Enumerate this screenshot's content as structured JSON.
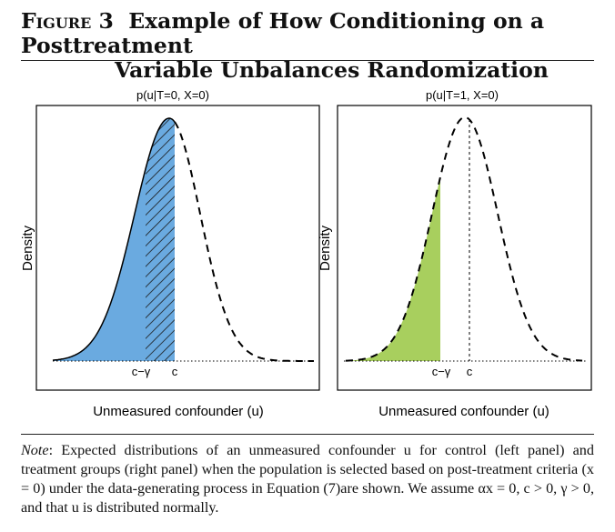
{
  "figure": {
    "label": "Figure 3",
    "title_line1": "Example of How Conditioning on a Posttreatment",
    "title_line2": "Variable Unbalances Randomization"
  },
  "note": {
    "label": "Note",
    "text": ": Expected distributions of an unmeasured confounder u for control (left panel) and treatment groups (right panel) when the population is selected based on post-treatment criteria (x = 0) under the data-generating process in Equation (7)are shown. We assume αx = 0, c > 0, γ > 0, and that u is distributed normally."
  },
  "colors": {
    "left_fill": "#6aaae0",
    "right_fill": "#a8cf5e",
    "curve": "#000000"
  },
  "chart_data": [
    {
      "type": "area",
      "title": "p(u|T=0, X=0)",
      "xlabel": "Unmeasured confounder (u)",
      "ylabel": "Density",
      "tick_labels": [
        "c−γ",
        "c"
      ],
      "curve": "skewed-normal density, dashed beyond c",
      "shaded_solid": "below c−γ",
      "shaded_hatched": "between c−γ and c",
      "fill": "#6aaae0"
    },
    {
      "type": "area",
      "title": "p(u|T=1, X=0)",
      "xlabel": "Unmeasured confounder (u)",
      "ylabel": "Density",
      "tick_labels": [
        "c−γ",
        "c"
      ],
      "curve": "normal density, dashed; dotted vertical at c",
      "shaded_solid": "below c−γ",
      "fill": "#a8cf5e"
    }
  ]
}
